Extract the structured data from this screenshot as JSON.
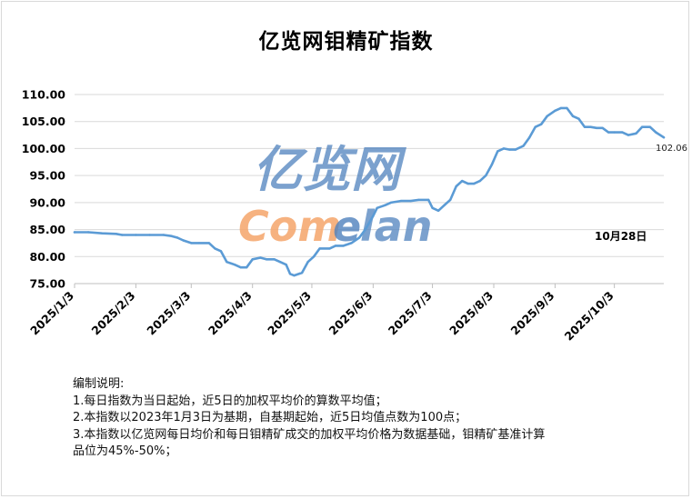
{
  "title": "亿览网钼精矿指数",
  "watermark": {
    "cn": "亿览网",
    "en_com": "Com",
    "en_lan": "lan",
    "en_mark": "e",
    "color_cn": "#4f81bd",
    "color_com": "#f4a46a",
    "color_lan": "#4f81bd"
  },
  "chart_data": {
    "type": "line",
    "title": "亿览网钼精矿指数",
    "ylim": [
      75,
      110
    ],
    "y_ticks": [
      "75.00",
      "80.00",
      "85.00",
      "90.00",
      "95.00",
      "100.00",
      "105.00",
      "110.00"
    ],
    "y_tick_values": [
      75,
      80,
      85,
      90,
      95,
      100,
      105,
      110
    ],
    "x_tick_labels": [
      "2025/1/3",
      "2025/2/3",
      "2025/3/3",
      "2025/4/3",
      "2025/5/3",
      "2025/6/3",
      "2025/7/3",
      "2025/8/3",
      "2025/9/3",
      "2025/10/3"
    ],
    "x_tick_dates": [
      "2025-01-03",
      "2025-02-03",
      "2025-03-03",
      "2025-04-03",
      "2025-05-03",
      "2025-06-03",
      "2025-07-03",
      "2025-08-03",
      "2025-09-03",
      "2025-10-03"
    ],
    "x_range": [
      "2025-01-03",
      "2025-10-28"
    ],
    "line_color": "#5b9bd5",
    "grid": "horizontal",
    "last_value_label": "102.06",
    "annotation": "10月28日",
    "series": [
      {
        "points": [
          [
            "2025-01-03",
            84.5
          ],
          [
            "2025-01-10",
            84.5
          ],
          [
            "2025-01-17",
            84.3
          ],
          [
            "2025-01-24",
            84.2
          ],
          [
            "2025-01-27",
            84.0
          ],
          [
            "2025-02-03",
            84.0
          ],
          [
            "2025-02-10",
            84.0
          ],
          [
            "2025-02-17",
            84.0
          ],
          [
            "2025-02-21",
            83.8
          ],
          [
            "2025-02-24",
            83.5
          ],
          [
            "2025-02-27",
            83.0
          ],
          [
            "2025-03-03",
            82.5
          ],
          [
            "2025-03-07",
            82.5
          ],
          [
            "2025-03-12",
            82.5
          ],
          [
            "2025-03-15",
            81.5
          ],
          [
            "2025-03-18",
            81.0
          ],
          [
            "2025-03-21",
            79.0
          ],
          [
            "2025-03-25",
            78.5
          ],
          [
            "2025-03-28",
            78.0
          ],
          [
            "2025-03-31",
            78.0
          ],
          [
            "2025-04-03",
            79.5
          ],
          [
            "2025-04-07",
            79.8
          ],
          [
            "2025-04-10",
            79.5
          ],
          [
            "2025-04-14",
            79.5
          ],
          [
            "2025-04-17",
            79.0
          ],
          [
            "2025-04-20",
            78.5
          ],
          [
            "2025-04-22",
            76.8
          ],
          [
            "2025-04-24",
            76.5
          ],
          [
            "2025-04-28",
            77.0
          ],
          [
            "2025-05-01",
            79.0
          ],
          [
            "2025-05-04",
            80.0
          ],
          [
            "2025-05-07",
            81.5
          ],
          [
            "2025-05-12",
            81.5
          ],
          [
            "2025-05-15",
            82.0
          ],
          [
            "2025-05-19",
            82.0
          ],
          [
            "2025-05-23",
            82.5
          ],
          [
            "2025-05-27",
            83.5
          ],
          [
            "2025-05-30",
            85.0
          ],
          [
            "2025-06-03",
            87.5
          ],
          [
            "2025-06-05",
            89.0
          ],
          [
            "2025-06-09",
            89.5
          ],
          [
            "2025-06-12",
            90.0
          ],
          [
            "2025-06-17",
            90.3
          ],
          [
            "2025-06-22",
            90.3
          ],
          [
            "2025-06-26",
            90.5
          ],
          [
            "2025-07-01",
            90.5
          ],
          [
            "2025-07-03",
            89.0
          ],
          [
            "2025-07-06",
            88.5
          ],
          [
            "2025-07-09",
            89.5
          ],
          [
            "2025-07-12",
            90.5
          ],
          [
            "2025-07-15",
            93.0
          ],
          [
            "2025-07-18",
            94.0
          ],
          [
            "2025-07-21",
            93.5
          ],
          [
            "2025-07-24",
            93.5
          ],
          [
            "2025-07-27",
            94.0
          ],
          [
            "2025-07-30",
            95.0
          ],
          [
            "2025-08-02",
            97.0
          ],
          [
            "2025-08-05",
            99.5
          ],
          [
            "2025-08-08",
            100.0
          ],
          [
            "2025-08-11",
            99.8
          ],
          [
            "2025-08-14",
            99.8
          ],
          [
            "2025-08-18",
            100.5
          ],
          [
            "2025-08-21",
            102.0
          ],
          [
            "2025-08-24",
            104.0
          ],
          [
            "2025-08-27",
            104.5
          ],
          [
            "2025-08-30",
            106.0
          ],
          [
            "2025-09-03",
            107.0
          ],
          [
            "2025-09-06",
            107.5
          ],
          [
            "2025-09-09",
            107.5
          ],
          [
            "2025-09-12",
            106.0
          ],
          [
            "2025-09-15",
            105.5
          ],
          [
            "2025-09-18",
            104.0
          ],
          [
            "2025-09-21",
            104.0
          ],
          [
            "2025-09-24",
            103.8
          ],
          [
            "2025-09-27",
            103.8
          ],
          [
            "2025-09-30",
            103.0
          ],
          [
            "2025-10-03",
            103.0
          ],
          [
            "2025-10-07",
            103.0
          ],
          [
            "2025-10-10",
            102.5
          ],
          [
            "2025-10-14",
            102.8
          ],
          [
            "2025-10-17",
            104.0
          ],
          [
            "2025-10-21",
            104.0
          ],
          [
            "2025-10-24",
            103.0
          ],
          [
            "2025-10-28",
            102.06
          ]
        ]
      }
    ]
  },
  "notes": {
    "heading": "编制说明:",
    "line1": "1.每日指数为当日起始，近5日的加权平均价的算数平均值；",
    "line2": "2.本指数以2023年1月3日为基期，自基期起始，近5日均值点数为100点；",
    "line3": "3.本指数以亿览网每日均价和每日钼精矿成交的加权平均价格为数据基础，钼精矿基准计算",
    "line4": "品位为45%-50%；"
  }
}
